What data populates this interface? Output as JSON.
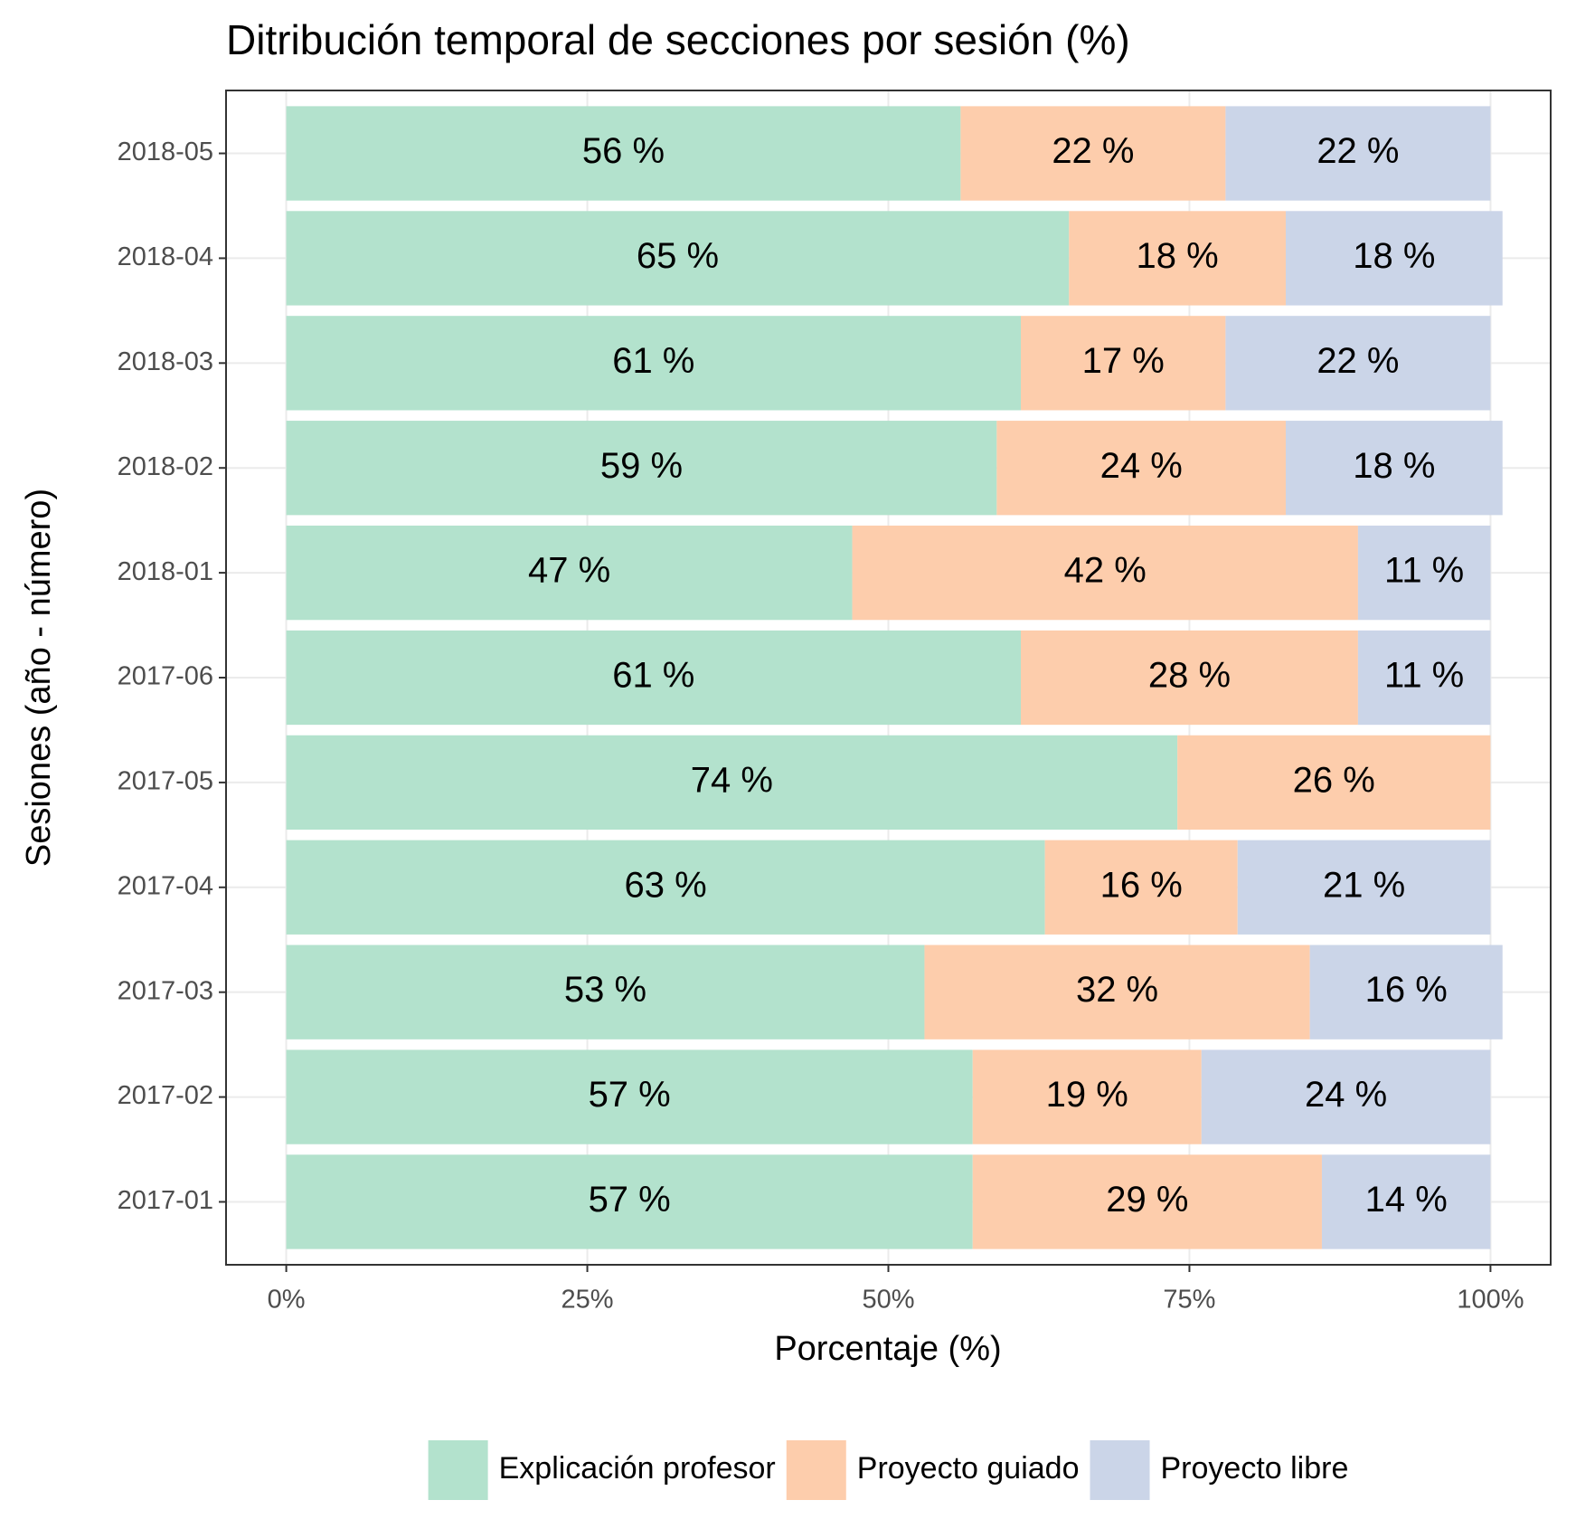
{
  "chart_data": {
    "type": "stacked-barh",
    "title": "Ditribución temporal de secciones por sesión (%)",
    "x_label": "Porcentaje (%)",
    "y_label": "Sesiones (año - número)",
    "categories": [
      "2017-01",
      "2017-02",
      "2017-03",
      "2017-04",
      "2017-05",
      "2017-06",
      "2018-01",
      "2018-02",
      "2018-03",
      "2018-04",
      "2018-05"
    ],
    "series": [
      {
        "name": "Explicación profesor",
        "color": "#b3e2cd",
        "values": [
          57,
          57,
          53,
          63,
          74,
          61,
          47,
          59,
          61,
          65,
          56
        ],
        "value_labels": [
          "57 %",
          "57 %",
          "53 %",
          "63 %",
          "74 %",
          "61 %",
          "47 %",
          "59 %",
          "61 %",
          "65 %",
          "56 %"
        ]
      },
      {
        "name": "Proyecto guiado",
        "color": "#fdcdac",
        "values": [
          29,
          19,
          32,
          16,
          26,
          28,
          42,
          24,
          17,
          18,
          22
        ],
        "value_labels": [
          "29 %",
          "19 %",
          "32 %",
          "16 %",
          "26 %",
          "28 %",
          "42 %",
          "24 %",
          "17 %",
          "18 %",
          "22 %"
        ]
      },
      {
        "name": "Proyecto libre",
        "color": "#cbd5e8",
        "values": [
          14,
          24,
          16,
          21,
          null,
          11,
          11,
          18,
          22,
          18,
          22
        ],
        "value_labels": [
          "14 %",
          "24 %",
          "16 %",
          "21 %",
          null,
          "11 %",
          "11 %",
          "18 %",
          "22 %",
          "18 %",
          "22 %"
        ]
      }
    ],
    "xlim": [
      -5,
      105
    ],
    "xticks": [
      {
        "value": 0,
        "label": "0%"
      },
      {
        "value": 25,
        "label": "25%"
      },
      {
        "value": 50,
        "label": "50%"
      },
      {
        "value": 75,
        "label": "75%"
      },
      {
        "value": 100,
        "label": "100%"
      }
    ],
    "grid": true,
    "legend": "bottom"
  }
}
